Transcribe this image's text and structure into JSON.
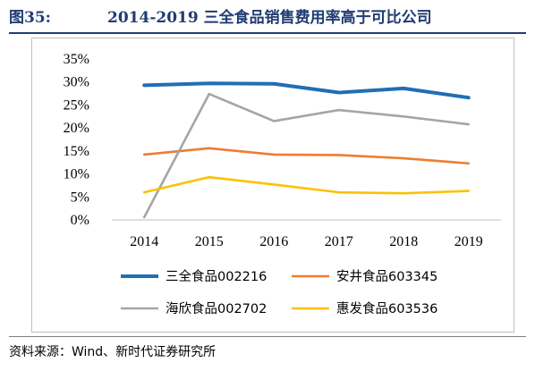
{
  "figure": {
    "number": "图35:",
    "title": "2014-2019 三全食品销售费用率高于可比公司",
    "source": "资料来源：Wind、新时代证券研究所"
  },
  "chart_data": {
    "type": "line",
    "title": "2014-2019 三全食品销售费用率高于可比公司",
    "x": [
      "2014",
      "2015",
      "2016",
      "2017",
      "2018",
      "2019"
    ],
    "ylim": [
      0,
      0.35
    ],
    "yticks": [
      0,
      0.05,
      0.1,
      0.15,
      0.2,
      0.25,
      0.3,
      0.35
    ],
    "ytick_labels": [
      "0%",
      "5%",
      "10%",
      "15%",
      "20%",
      "25%",
      "30%",
      "35%"
    ],
    "xlabel": "",
    "ylabel": "",
    "grid": false,
    "legend_position": "bottom",
    "series": [
      {
        "name": "三全食品002216",
        "color": "#1f6fb5",
        "values": [
          0.293,
          0.297,
          0.296,
          0.277,
          0.286,
          0.266
        ]
      },
      {
        "name": "安井食品603345",
        "color": "#ed7d31",
        "values": [
          0.142,
          0.156,
          0.142,
          0.141,
          0.134,
          0.123
        ]
      },
      {
        "name": "海欣食品002702",
        "color": "#a5a5a5",
        "values": [
          0.006,
          0.274,
          0.215,
          0.239,
          0.225,
          0.208
        ]
      },
      {
        "name": "惠发食品603536",
        "color": "#ffc000",
        "values": [
          0.06,
          0.093,
          0.077,
          0.06,
          0.058,
          0.063
        ]
      }
    ]
  }
}
